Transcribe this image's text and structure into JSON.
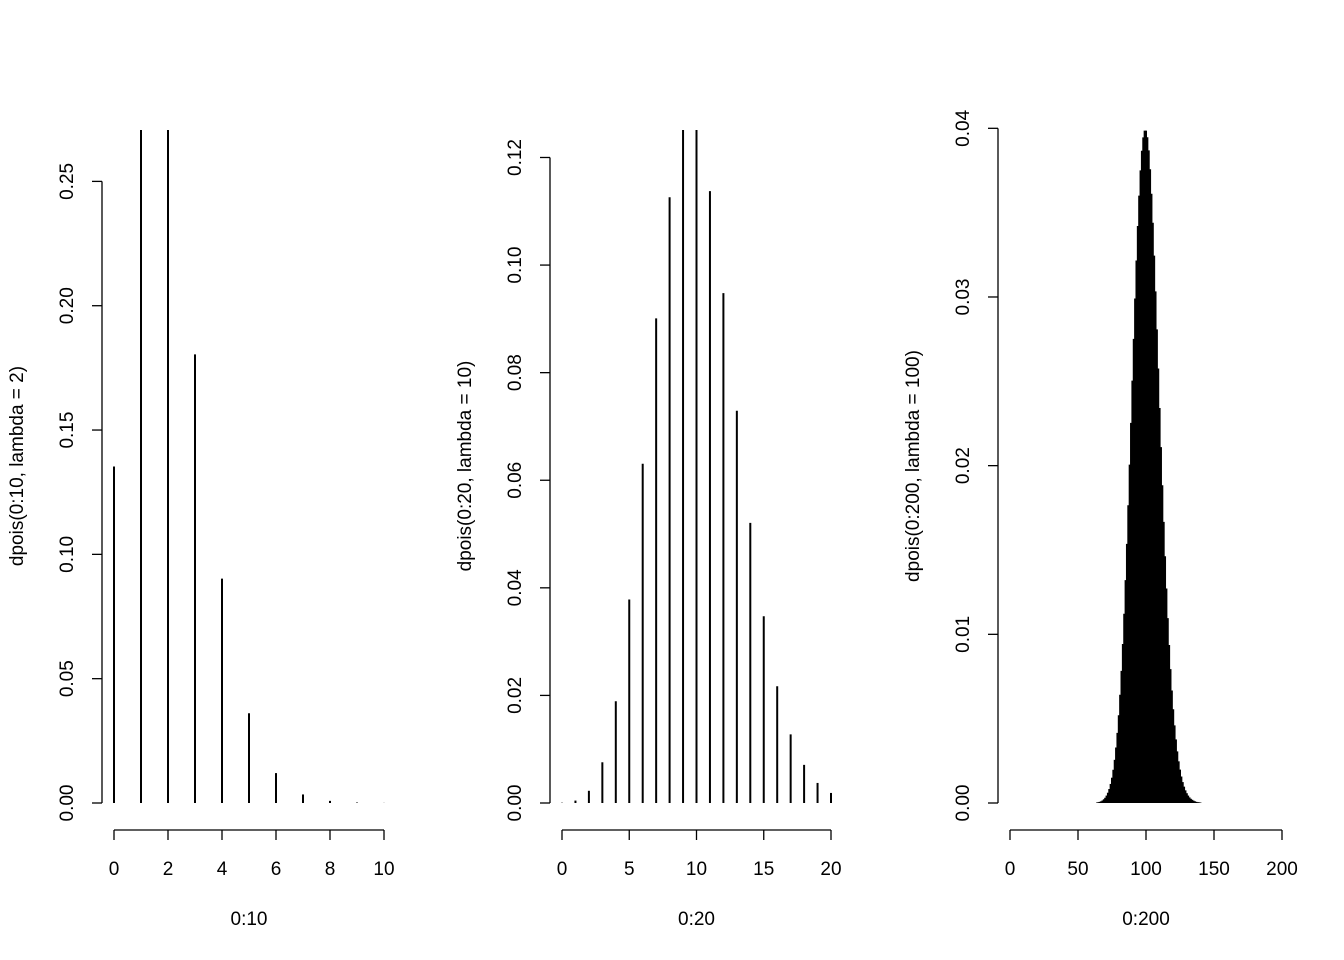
{
  "chart_data": [
    {
      "type": "bar",
      "xlabel": "0:10",
      "ylabel": "dpois(0:10, lambda = 2)",
      "color": "#000000",
      "x": [
        0,
        1,
        2,
        3,
        4,
        5,
        6,
        7,
        8,
        9,
        10
      ],
      "values": [
        0.13534,
        0.27067,
        0.27067,
        0.18045,
        0.09022,
        0.03609,
        0.01203,
        0.00344,
        0.00086,
        0.00019,
        4e-05
      ],
      "xlim": [
        0,
        10
      ],
      "xticks": [
        0,
        2,
        4,
        6,
        8,
        10
      ],
      "ylim": [
        0,
        0.27067
      ],
      "yticks": [
        {
          "value": 0,
          "label": "0.00"
        },
        {
          "value": 0.05,
          "label": "0.05"
        },
        {
          "value": 0.1,
          "label": "0.10"
        },
        {
          "value": 0.15,
          "label": "0.15"
        },
        {
          "value": 0.2,
          "label": "0.20"
        },
        {
          "value": 0.25,
          "label": "0.25"
        }
      ]
    },
    {
      "type": "bar",
      "xlabel": "0:20",
      "ylabel": "dpois(0:20, lambda = 10)",
      "color": "#000000",
      "x": [
        0,
        1,
        2,
        3,
        4,
        5,
        6,
        7,
        8,
        9,
        10,
        11,
        12,
        13,
        14,
        15,
        16,
        17,
        18,
        19,
        20
      ],
      "values": [
        5e-05,
        0.00045,
        0.00227,
        0.00757,
        0.01892,
        0.03783,
        0.06306,
        0.09008,
        0.1126,
        0.12511,
        0.12511,
        0.11374,
        0.09478,
        0.07291,
        0.05208,
        0.03472,
        0.0217,
        0.01276,
        0.00709,
        0.00373,
        0.00187
      ],
      "xlim": [
        0,
        20
      ],
      "xticks": [
        0,
        5,
        10,
        15,
        20
      ],
      "ylim": [
        0,
        0.12511
      ],
      "yticks": [
        {
          "value": 0,
          "label": "0.00"
        },
        {
          "value": 0.02,
          "label": "0.02"
        },
        {
          "value": 0.04,
          "label": "0.04"
        },
        {
          "value": 0.06,
          "label": "0.06"
        },
        {
          "value": 0.08,
          "label": "0.08"
        },
        {
          "value": 0.1,
          "label": "0.10"
        },
        {
          "value": 0.12,
          "label": "0.12"
        }
      ]
    },
    {
      "type": "bar",
      "xlabel": "0:200",
      "ylabel": "dpois(0:200, lambda = 100)",
      "color": "#000000",
      "x": [
        0,
        1,
        2,
        3,
        4,
        5,
        6,
        7,
        8,
        9,
        10,
        11,
        12,
        13,
        14,
        15,
        16,
        17,
        18,
        19,
        20,
        21,
        22,
        23,
        24,
        25,
        26,
        27,
        28,
        29,
        30,
        31,
        32,
        33,
        34,
        35,
        36,
        37,
        38,
        39,
        40,
        41,
        42,
        43,
        44,
        45,
        46,
        47,
        48,
        49,
        50,
        51,
        52,
        53,
        54,
        55,
        56,
        57,
        58,
        59,
        60,
        61,
        62,
        63,
        64,
        65,
        66,
        67,
        68,
        69,
        70,
        71,
        72,
        73,
        74,
        75,
        76,
        77,
        78,
        79,
        80,
        81,
        82,
        83,
        84,
        85,
        86,
        87,
        88,
        89,
        90,
        91,
        92,
        93,
        94,
        95,
        96,
        97,
        98,
        99,
        100,
        101,
        102,
        103,
        104,
        105,
        106,
        107,
        108,
        109,
        110,
        111,
        112,
        113,
        114,
        115,
        116,
        117,
        118,
        119,
        120,
        121,
        122,
        123,
        124,
        125,
        126,
        127,
        128,
        129,
        130,
        131,
        132,
        133,
        134,
        135,
        136,
        137,
        138,
        139,
        140,
        141,
        142,
        143,
        144,
        145,
        146,
        147,
        148,
        149,
        150,
        151,
        152,
        153,
        154,
        155,
        156,
        157,
        158,
        159,
        160,
        161,
        162,
        163,
        164,
        165,
        166,
        167,
        168,
        169,
        170,
        171,
        172,
        173,
        174,
        175,
        176,
        177,
        178,
        179,
        180,
        181,
        182,
        183,
        184,
        185,
        186,
        187,
        188,
        189,
        190,
        191,
        192,
        193,
        194,
        195,
        196,
        197,
        198,
        199,
        200
      ],
      "values": [
        0,
        0,
        0,
        0,
        0,
        0,
        0,
        0,
        0,
        0,
        0,
        0,
        0,
        0,
        0,
        0,
        0,
        0,
        0,
        0,
        0,
        0,
        0,
        0,
        0,
        0,
        0,
        0,
        0,
        0,
        0,
        0,
        0,
        0,
        0,
        0,
        0,
        0,
        0,
        0,
        0,
        0,
        0,
        0,
        0,
        0,
        0,
        0,
        0,
        0,
        0,
        0,
        0,
        0,
        0,
        0,
        0,
        0,
        0,
        0,
        0,
        0,
        0,
        0,
        3e-05,
        5e-05,
        7e-05,
        0.0001,
        0.00015,
        0.00022,
        0.00031,
        0.00044,
        0.00061,
        0.00083,
        0.00113,
        0.0015,
        0.00197,
        0.00256,
        0.00329,
        0.00416,
        0.0052,
        0.00642,
        0.00783,
        0.00943,
        0.01122,
        0.01321,
        0.01536,
        0.01765,
        0.02006,
        0.02254,
        0.02504,
        0.02752,
        0.02991,
        0.03216,
        0.03421,
        0.03601,
        0.03751,
        0.03867,
        0.03946,
        0.03986,
        0.03986,
        0.03947,
        0.03869,
        0.03757,
        0.03612,
        0.0344,
        0.03245,
        0.03033,
        0.02808,
        0.02576,
        0.02342,
        0.0211,
        0.01884,
        0.01667,
        0.01463,
        0.01272,
        0.01096,
        0.00937,
        0.00794,
        0.00667,
        0.00556,
        0.0046,
        0.00377,
        0.00306,
        0.00247,
        0.00198,
        0.00157,
        0.00124,
        0.00097,
        0.00075,
        0.00058,
        0.00044,
        0.00033,
        0.00025,
        0.00019,
        0.00014,
        0.0001,
        7e-05,
        5e-05,
        4e-05,
        3e-05,
        0,
        0,
        0,
        0,
        0,
        0,
        0,
        0,
        0,
        0,
        0,
        0,
        0,
        0,
        0,
        0,
        0,
        0,
        0,
        0,
        0,
        0,
        0,
        0,
        0,
        0,
        0,
        0,
        0,
        0,
        0,
        0,
        0,
        0,
        0,
        0,
        0,
        0,
        0,
        0,
        0,
        0,
        0,
        0,
        0,
        0,
        0,
        0,
        0,
        0,
        0,
        0,
        0,
        0,
        0,
        0,
        0,
        0,
        0,
        0
      ],
      "xlim": [
        0,
        200
      ],
      "xticks": [
        0,
        50,
        100,
        150,
        200
      ],
      "ylim": [
        0,
        0.0399
      ],
      "yticks": [
        {
          "value": 0,
          "label": "0.00"
        },
        {
          "value": 0.01,
          "label": "0.01"
        },
        {
          "value": 0.02,
          "label": "0.02"
        },
        {
          "value": 0.03,
          "label": "0.03"
        },
        {
          "value": 0.04,
          "label": "0.04"
        }
      ]
    }
  ]
}
